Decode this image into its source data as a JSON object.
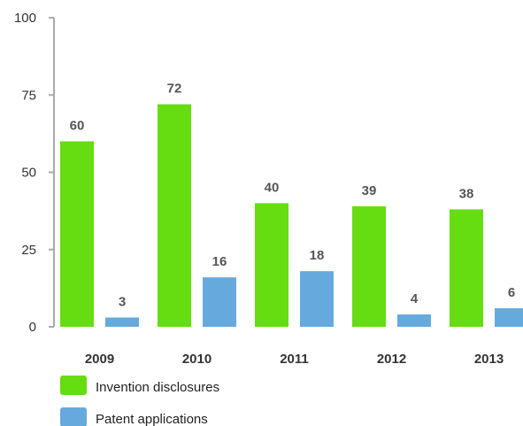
{
  "chart_data": {
    "type": "bar",
    "categories": [
      "2009",
      "2010",
      "2011",
      "2012",
      "2013"
    ],
    "series": [
      {
        "name": "Invention disclosures",
        "values": [
          60,
          72,
          40,
          39,
          38
        ],
        "color": "#66dd11"
      },
      {
        "name": "Patent applications",
        "values": [
          3,
          16,
          18,
          4,
          6
        ],
        "color": "#66aadd"
      }
    ],
    "yticks": [
      0,
      25,
      50,
      75,
      100
    ],
    "ylim": [
      0,
      100
    ],
    "xlabel": "",
    "ylabel": "",
    "title": "",
    "legend_position": "bottom-left",
    "grid": false,
    "colors": {
      "axis": "#aaaaaa",
      "text": "#333333",
      "data_label": "#555555"
    }
  }
}
